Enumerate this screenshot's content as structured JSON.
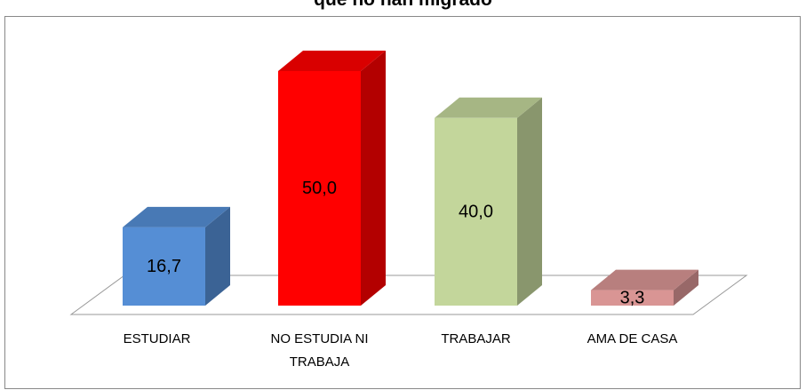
{
  "chart_data": {
    "type": "bar3d",
    "title": "que no han migrado",
    "categories": [
      "ESTUDIAR",
      "NO ESTUDIA NI TRABAJA",
      "TRABAJAR",
      "AMA DE CASA"
    ],
    "values": [
      16.7,
      50.0,
      40.0,
      3.3
    ],
    "value_labels": [
      "16,7",
      "50,0",
      "40,0",
      "3,3"
    ],
    "colors": [
      "#558ed5",
      "#ff0000",
      "#c3d69b",
      "#d99594"
    ]
  }
}
